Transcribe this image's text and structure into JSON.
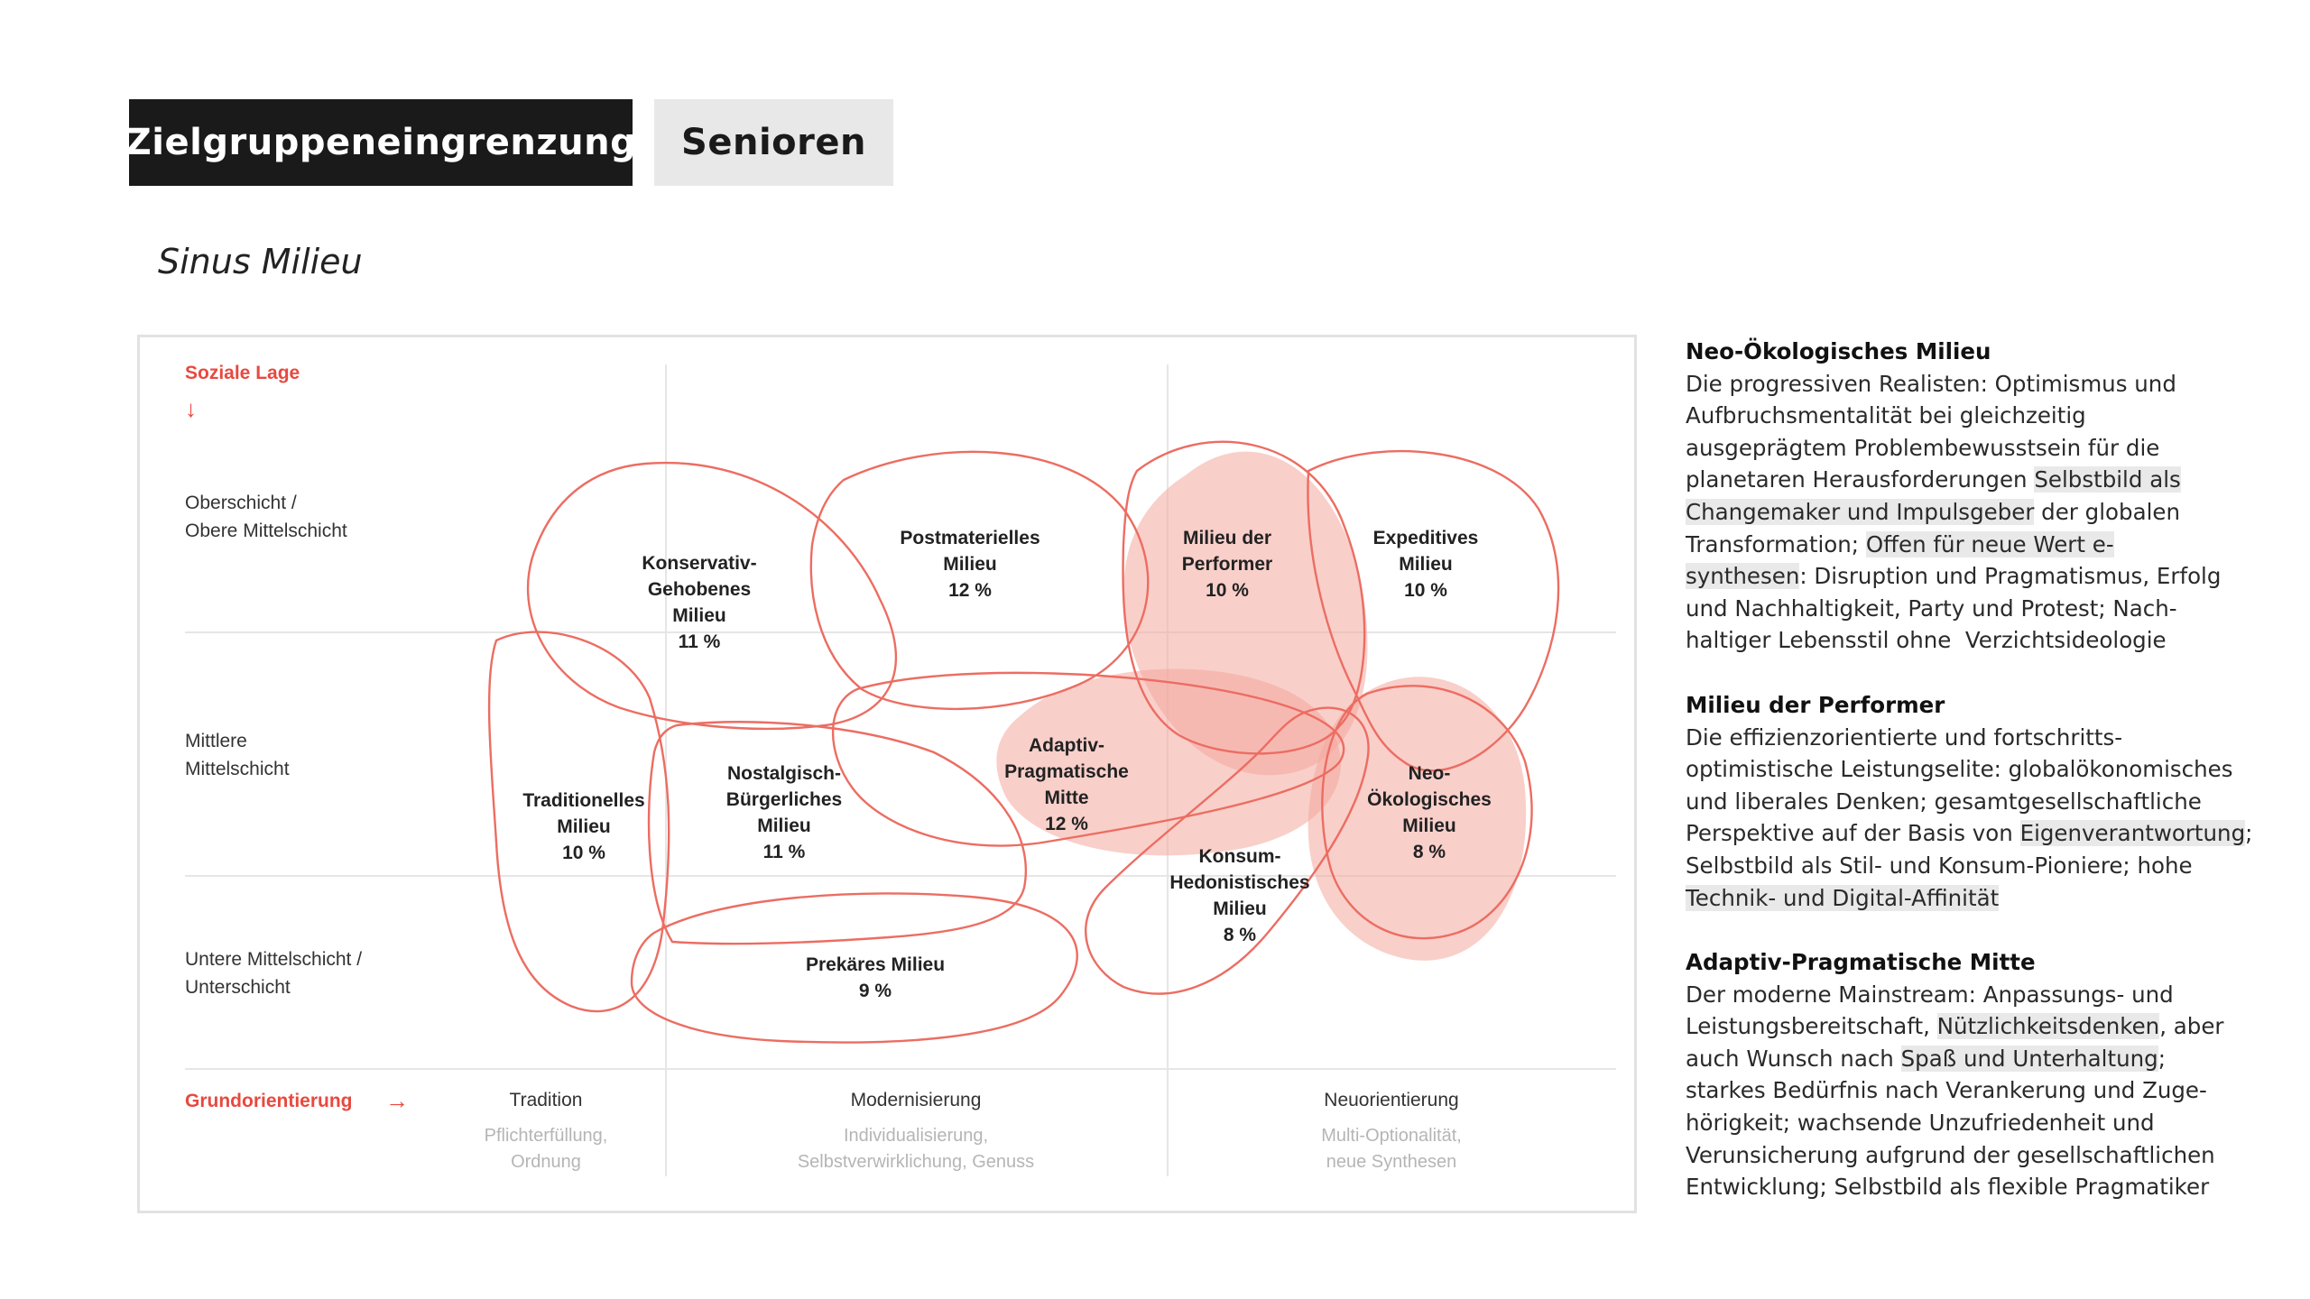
{
  "header": {
    "tab_active": "Zielgruppeneingrenzung",
    "tab_inactive": "Senioren"
  },
  "subtitle": "Sinus Milieu",
  "diagram": {
    "y_axis_label": "Soziale Lage",
    "y_axis_arrow": "↓",
    "rows": [
      {
        "line1": "Oberschicht /",
        "line2": "Obere Mittelschicht"
      },
      {
        "line1": "Mittlere",
        "line2": "Mittelschicht"
      },
      {
        "line1": "Untere Mittelschicht /",
        "line2": "Unterschicht"
      }
    ],
    "x_axis_label": "Grundorientierung",
    "x_axis_arrow": "→",
    "columns": [
      {
        "title": "Tradition",
        "sub1": "Pflichterfüllung,",
        "sub2": "Ordnung"
      },
      {
        "title": "Modernisierung",
        "sub1": "Individualisierung,",
        "sub2": "Selbstverwirklichung, Genuss"
      },
      {
        "title": "Neuorientierung",
        "sub1": "Multi-Optionalität,",
        "sub2": "neue Synthesen"
      }
    ],
    "milieus": [
      {
        "lines": [
          "Konservativ-",
          "Gehobenes",
          "Milieu"
        ],
        "share": "11 %",
        "highlighted": false
      },
      {
        "lines": [
          "Postmaterielles",
          "Milieu"
        ],
        "share": "12 %",
        "highlighted": false
      },
      {
        "lines": [
          "Milieu der",
          "Performer"
        ],
        "share": "10 %",
        "highlighted": true
      },
      {
        "lines": [
          "Expeditives",
          "Milieu"
        ],
        "share": "10 %",
        "highlighted": false
      },
      {
        "lines": [
          "Traditionelles",
          "Milieu"
        ],
        "share": "10 %",
        "highlighted": false
      },
      {
        "lines": [
          "Nostalgisch-",
          "Bürgerliches",
          "Milieu"
        ],
        "share": "11 %",
        "highlighted": false
      },
      {
        "lines": [
          "Adaptiv-",
          "Pragmatische",
          "Mitte"
        ],
        "share": "12 %",
        "highlighted": true
      },
      {
        "lines": [
          "Neo-",
          "Ökologisches",
          "Milieu"
        ],
        "share": "8 %",
        "highlighted": true
      },
      {
        "lines": [
          "Konsum-",
          "Hedonistisches",
          "Milieu"
        ],
        "share": "8 %",
        "highlighted": false
      },
      {
        "lines": [
          "Prekäres Milieu"
        ],
        "share": "9 %",
        "highlighted": false
      }
    ],
    "colors": {
      "accent": "#e8493f",
      "highlight_fill": "#f4a89f",
      "grid": "#e6e6e6",
      "muted": "#b5b5b5"
    }
  },
  "panel": [
    {
      "title": "Neo-Ökologisches Milieu",
      "lines": [
        [
          {
            "t": "Die progressiven Realisten: Optimismus und"
          }
        ],
        [
          {
            "t": "Aufbruchsmentalität bei gleichzeitig"
          }
        ],
        [
          {
            "t": "ausgeprägtem Problembewusstsein für die"
          }
        ],
        [
          {
            "t": "planetaren Herausforderungen "
          },
          {
            "t": "Selbstbild als",
            "h": true
          }
        ],
        [
          {
            "t": "Changemaker und Impulsgeber",
            "h": true
          },
          {
            "t": " der globalen"
          }
        ],
        [
          {
            "t": "Transformation; "
          },
          {
            "t": "Offen für neue Wert e-",
            "h": true
          }
        ],
        [
          {
            "t": "synthesen",
            "h": true
          },
          {
            "t": ": Disruption und Pragmatismus, Erfolg"
          }
        ],
        [
          {
            "t": "und Nachhaltigkeit, Party und Protest; Nach-"
          }
        ],
        [
          {
            "t": "haltiger Lebensstil ohne  Verzichtsideologie"
          }
        ]
      ]
    },
    {
      "title": "Milieu der Performer",
      "lines": [
        [
          {
            "t": "Die effizienzorientierte und fortschritts-"
          }
        ],
        [
          {
            "t": "optimistische Leistungselite: globalökonomisches"
          }
        ],
        [
          {
            "t": "und liberales Denken; gesamtgesellschaftliche"
          }
        ],
        [
          {
            "t": "Perspektive auf der Basis von "
          },
          {
            "t": "Eigenverantwortung",
            "h": true
          },
          {
            "t": ";"
          }
        ],
        [
          {
            "t": "Selbstbild als Stil- und Konsum-Pioniere; hohe"
          }
        ],
        [
          {
            "t": "Technik- und Digital-Affinität",
            "h": true
          }
        ]
      ]
    },
    {
      "title": "Adaptiv-Pragmatische Mitte",
      "lines": [
        [
          {
            "t": "Der moderne Mainstream: Anpassungs- und"
          }
        ],
        [
          {
            "t": "Leistungsbereitschaft, "
          },
          {
            "t": "Nützlichkeitsdenken",
            "h": true
          },
          {
            "t": ", aber"
          }
        ],
        [
          {
            "t": "auch Wunsch nach "
          },
          {
            "t": "Spaß und Unterhaltung",
            "h": true
          },
          {
            "t": ";"
          }
        ],
        [
          {
            "t": "starkes Bedürfnis nach Verankerung und Zuge-"
          }
        ],
        [
          {
            "t": "hörigkeit; wachsende Unzufriedenheit und"
          }
        ],
        [
          {
            "t": "Verunsicherung aufgrund der gesellschaftlichen"
          }
        ],
        [
          {
            "t": "Entwicklung; Selbstbild als flexible Pragmatiker"
          }
        ]
      ]
    }
  ]
}
